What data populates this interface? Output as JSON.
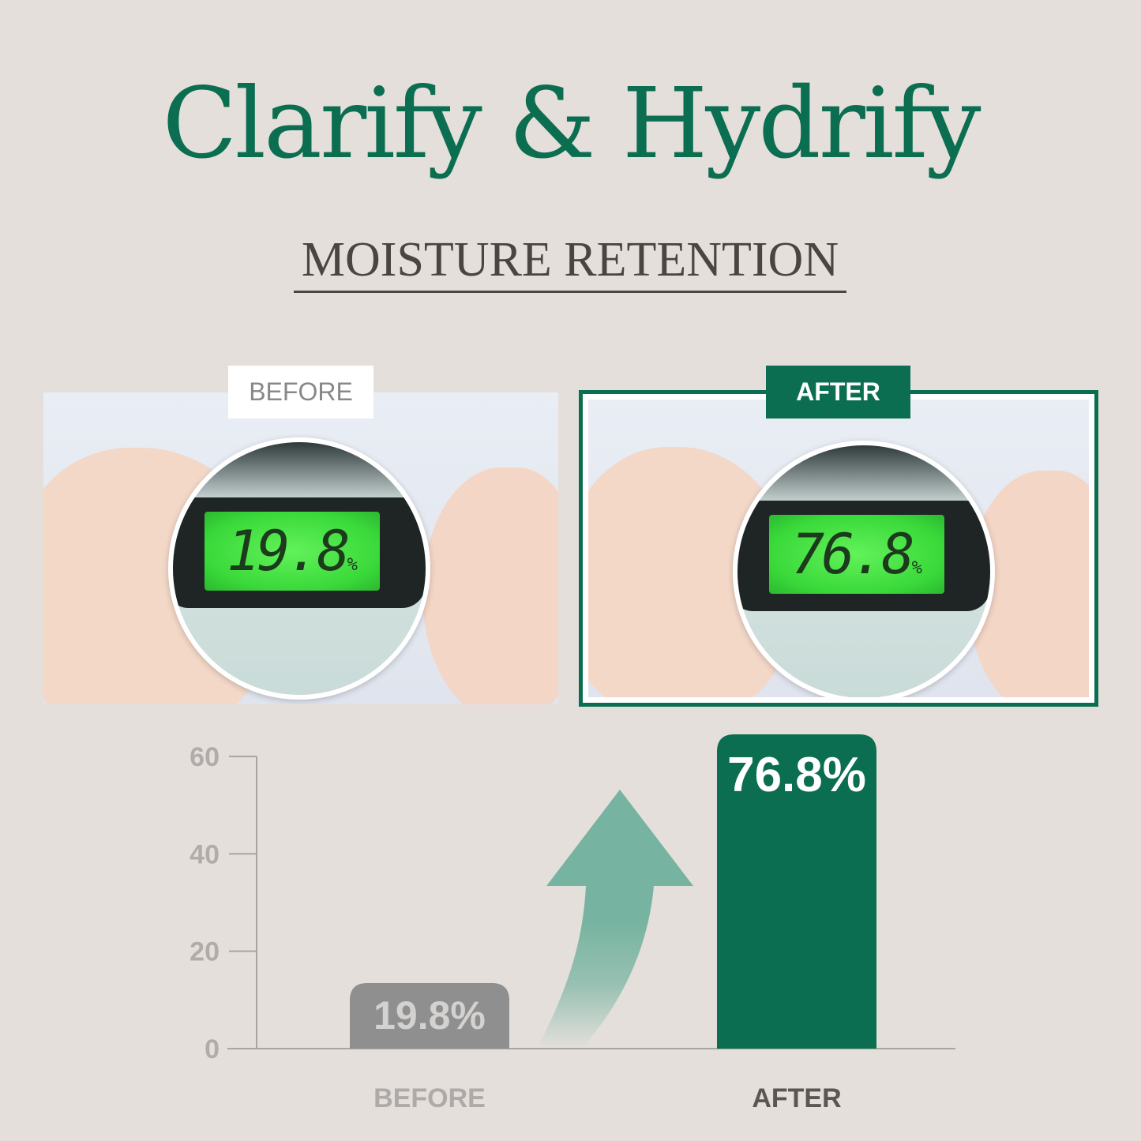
{
  "header": {
    "title": "Clarify & Hydrify",
    "subtitle": "MOISTURE RETENTION"
  },
  "photos": {
    "before": {
      "label": "BEFORE",
      "reading": "19.8",
      "unit": "%"
    },
    "after": {
      "label": "AFTER",
      "reading": "76.8",
      "unit": "%"
    }
  },
  "colors": {
    "accent": "#0b6e50",
    "before_bar": "#8f8f8f",
    "arrow": "#76b3a0",
    "background": "#e4dfdb"
  },
  "chart_data": {
    "type": "bar",
    "categories": [
      "BEFORE",
      "AFTER"
    ],
    "values": [
      19.8,
      76.8
    ],
    "data_labels": [
      "19.8%",
      "76.8%"
    ],
    "yticks": [
      0,
      20,
      40,
      60
    ],
    "ylim": [
      0,
      60
    ],
    "grid": false,
    "annotation": "up-arrow"
  }
}
